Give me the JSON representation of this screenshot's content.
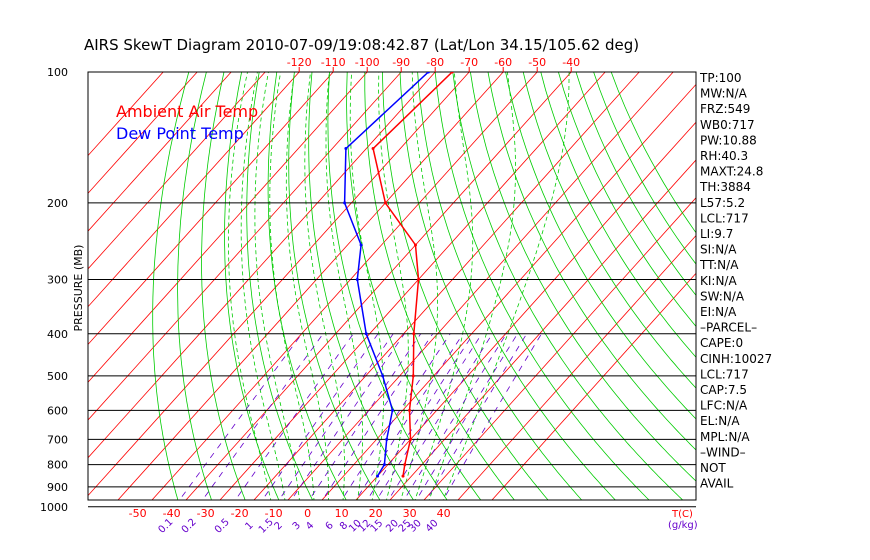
{
  "chart_data": {
    "type": "line",
    "title": "AIRS SkewT Diagram 2010-07-09/19:08:42.87 (Lat/Lon 34.15/105.62 deg)",
    "ylabel": "PRESSURE (MB)",
    "xlabel_bottom": "T(C)",
    "mixing_ratio_label": "(g/kg)",
    "pressure_ticks": [
      100,
      200,
      300,
      400,
      500,
      600,
      700,
      800,
      900,
      1000
    ],
    "top_temp_ticks": [
      -120,
      -110,
      -100,
      -90,
      -80,
      -70,
      -60,
      -50,
      -40
    ],
    "bottom_temp_ticks": [
      -50,
      -40,
      -30,
      -20,
      -10,
      0,
      10,
      20,
      30,
      40
    ],
    "mixing_ratio_ticks": [
      "0.1",
      "0.2",
      "0.5",
      "1",
      "1.5",
      "2",
      "3",
      "4",
      "6",
      "8",
      "10",
      "12",
      "15",
      "20",
      "25",
      "30",
      "40"
    ],
    "legend": [
      {
        "name": "Ambient Air Temp",
        "color": "#ff0000"
      },
      {
        "name": "Dew Point Temp",
        "color": "#0000ff"
      }
    ],
    "colors": {
      "isotherm": "#ff0000",
      "dry_adiabat": "#00cc00",
      "moist_adiabat": "#00cc00",
      "mixing_ratio": "#6600cc",
      "isobar": "#000000"
    },
    "series": [
      {
        "name": "Ambient Air Temp",
        "color": "#ff0000",
        "points": [
          [
            100,
            -75
          ],
          [
            150,
            -78
          ],
          [
            200,
            -60
          ],
          [
            250,
            -40
          ],
          [
            300,
            -30
          ],
          [
            400,
            -17
          ],
          [
            500,
            -6
          ],
          [
            600,
            2
          ],
          [
            700,
            10
          ],
          [
            800,
            15
          ],
          [
            850,
            17.5
          ]
        ]
      },
      {
        "name": "Dew Point Temp",
        "color": "#0000ff",
        "points": [
          [
            100,
            -82
          ],
          [
            150,
            -86
          ],
          [
            200,
            -72
          ],
          [
            250,
            -56
          ],
          [
            300,
            -48
          ],
          [
            400,
            -31
          ],
          [
            500,
            -15
          ],
          [
            600,
            -3
          ],
          [
            700,
            3
          ],
          [
            800,
            9
          ],
          [
            850,
            10
          ]
        ]
      }
    ],
    "side_panel": [
      "TP:100",
      "MW:N/A",
      "FRZ:549",
      "WB0:717",
      "PW:10.88",
      "RH:40.3",
      "MAXT:24.8",
      "TH:3884",
      "L57:5.2",
      "LCL:717",
      "LI:9.7",
      "SI:N/A",
      "TT:N/A",
      "KI:N/A",
      "SW:N/A",
      "EI:N/A",
      "–PARCEL–",
      "CAPE:0",
      "CINH:10027",
      "LCL:717",
      "CAP:7.5",
      "LFC:N/A",
      "EL:N/A",
      "MPL:N/A",
      "–WIND–",
      "NOT",
      "AVAIL"
    ]
  }
}
